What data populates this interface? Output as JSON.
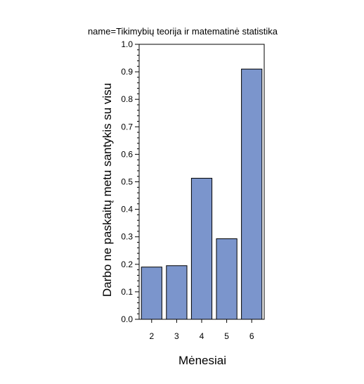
{
  "chart_data": {
    "type": "bar",
    "title": "name=Tikimybių teorija ir matematinė statistika",
    "xlabel": "Mėnesiai",
    "ylabel": "Darbo ne paskaitų metu santykis su visu",
    "categories": [
      "2",
      "3",
      "4",
      "5",
      "6"
    ],
    "values": [
      0.19,
      0.195,
      0.513,
      0.293,
      0.91
    ],
    "ylim": [
      0,
      1.0
    ],
    "yticks": [
      "0.0",
      "0.1",
      "0.2",
      "0.3",
      "0.4",
      "0.5",
      "0.6",
      "0.7",
      "0.8",
      "0.9",
      "1.0"
    ],
    "grid": false,
    "legend": "none",
    "colors": {
      "bar_fill": "#7b95cc",
      "bar_stroke": "#000000",
      "frame": "#000000"
    }
  }
}
